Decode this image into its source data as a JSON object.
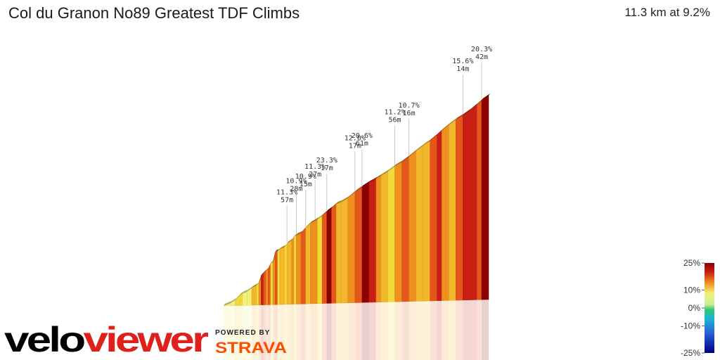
{
  "header": {
    "title": "Col du Granon No89 Greatest TDF Climbs",
    "summary": "11.3 km at 9.2%"
  },
  "colors": {
    "pos": [
      "#f5f07a",
      "#f3d93a",
      "#f2b72a",
      "#ef8f1e",
      "#e4561a",
      "#c81e14",
      "#8c0000"
    ],
    "neg": [
      "#c8ee9a",
      "#38c36a",
      "#19b6d8",
      "#2a5fd8",
      "#000080"
    ]
  },
  "chart_data": {
    "type": "area",
    "title": "Col du Granon No89 Greatest TDF Climbs",
    "subtitle": "11.3 km at 9.2%",
    "distance_km": 11.3,
    "average_gradient_pct": 9.2,
    "x_unit": "km",
    "y_unit": "m",
    "profile": [
      [
        0.0,
        0
      ],
      [
        0.3,
        9
      ],
      [
        0.5,
        19
      ],
      [
        0.7,
        35
      ],
      [
        0.8,
        40
      ],
      [
        1.0,
        47
      ],
      [
        1.2,
        58
      ],
      [
        1.4,
        67
      ],
      [
        1.5,
        75
      ],
      [
        1.6,
        100
      ],
      [
        1.7,
        108
      ],
      [
        1.8,
        115
      ],
      [
        1.9,
        122
      ],
      [
        2.0,
        140
      ],
      [
        2.1,
        145
      ],
      [
        2.2,
        179
      ],
      [
        2.3,
        182
      ],
      [
        2.4,
        188
      ],
      [
        2.6,
        196
      ],
      [
        2.7,
        207
      ],
      [
        2.9,
        218
      ],
      [
        3.0,
        230
      ],
      [
        3.1,
        235
      ],
      [
        3.3,
        242
      ],
      [
        3.5,
        260
      ],
      [
        3.7,
        275
      ],
      [
        4.0,
        288
      ],
      [
        4.2,
        300
      ],
      [
        4.4,
        314
      ],
      [
        4.6,
        325
      ],
      [
        4.8,
        340
      ],
      [
        5.0,
        346
      ],
      [
        5.3,
        360
      ],
      [
        5.6,
        380
      ],
      [
        5.9,
        397
      ],
      [
        6.2,
        412
      ],
      [
        6.5,
        425
      ],
      [
        6.7,
        435
      ],
      [
        7.0,
        450
      ],
      [
        7.3,
        468
      ],
      [
        7.6,
        482
      ],
      [
        7.9,
        500
      ],
      [
        8.2,
        520
      ],
      [
        8.5,
        538
      ],
      [
        8.8,
        555
      ],
      [
        9.1,
        575
      ],
      [
        9.3,
        590
      ],
      [
        9.6,
        610
      ],
      [
        9.9,
        628
      ],
      [
        10.2,
        643
      ],
      [
        10.5,
        660
      ],
      [
        10.8,
        680
      ],
      [
        11.0,
        695
      ],
      [
        11.3,
        712
      ]
    ],
    "bands": [
      [
        0.0,
        3
      ],
      [
        0.3,
        3.5
      ],
      [
        0.5,
        5
      ],
      [
        0.7,
        5
      ],
      [
        0.8,
        4
      ],
      [
        1.0,
        4.5
      ],
      [
        1.2,
        8
      ],
      [
        1.4,
        7
      ],
      [
        1.5,
        10.9
      ],
      [
        1.6,
        18
      ],
      [
        1.7,
        12
      ],
      [
        1.8,
        11.3
      ],
      [
        1.9,
        13
      ],
      [
        2.0,
        7
      ],
      [
        2.1,
        11
      ],
      [
        2.2,
        12
      ],
      [
        2.3,
        6
      ],
      [
        2.4,
        8
      ],
      [
        2.6,
        5
      ],
      [
        2.7,
        9
      ],
      [
        2.9,
        11.3
      ],
      [
        3.0,
        7
      ],
      [
        3.1,
        10.9
      ],
      [
        3.3,
        13
      ],
      [
        3.5,
        8
      ],
      [
        3.7,
        10
      ],
      [
        4.0,
        6
      ],
      [
        4.2,
        12
      ],
      [
        4.4,
        23.3
      ],
      [
        4.6,
        14
      ],
      [
        4.8,
        9
      ],
      [
        5.0,
        8
      ],
      [
        5.3,
        10
      ],
      [
        5.6,
        12.0
      ],
      [
        5.9,
        20.6
      ],
      [
        6.2,
        16
      ],
      [
        6.5,
        11
      ],
      [
        6.7,
        9
      ],
      [
        7.0,
        7
      ],
      [
        7.3,
        11.2
      ],
      [
        7.6,
        13
      ],
      [
        7.9,
        10.7
      ],
      [
        8.2,
        9
      ],
      [
        8.5,
        8
      ],
      [
        8.8,
        12
      ],
      [
        9.1,
        15
      ],
      [
        9.3,
        11
      ],
      [
        9.6,
        9
      ],
      [
        9.9,
        13
      ],
      [
        10.2,
        15.6
      ],
      [
        10.5,
        18
      ],
      [
        10.8,
        12
      ],
      [
        11.0,
        20.3
      ]
    ],
    "annotations": [
      {
        "km": 2.7,
        "grade": "11.3%",
        "len": "57m"
      },
      {
        "km": 3.1,
        "grade": "10.9%",
        "len": "28m"
      },
      {
        "km": 3.5,
        "grade": "10.9%",
        "len": "15m"
      },
      {
        "km": 3.9,
        "grade": "11.3%",
        "len": "27m"
      },
      {
        "km": 4.4,
        "grade": "23.3%",
        "len": "17m"
      },
      {
        "km": 5.6,
        "grade": "12.0%",
        "len": "17m"
      },
      {
        "km": 5.9,
        "grade": "20.6%",
        "len": "61m"
      },
      {
        "km": 7.3,
        "grade": "11.2%",
        "len": "56m"
      },
      {
        "km": 7.9,
        "grade": "10.7%",
        "len": "16m"
      },
      {
        "km": 10.2,
        "grade": "15.6%",
        "len": "14m"
      },
      {
        "km": 11.0,
        "grade": "20.3%",
        "len": "42m"
      }
    ],
    "legend": {
      "placement": "bottom-right",
      "labels": [
        "25%",
        "10%",
        "0%",
        "-10%",
        "-25%"
      ],
      "values": [
        25,
        10,
        0,
        -10,
        -25
      ]
    }
  },
  "branding": {
    "logo_velo": "velo",
    "logo_viewer": "viewer",
    "powered_by": "POWERED BY",
    "strava": "STRAVA"
  }
}
